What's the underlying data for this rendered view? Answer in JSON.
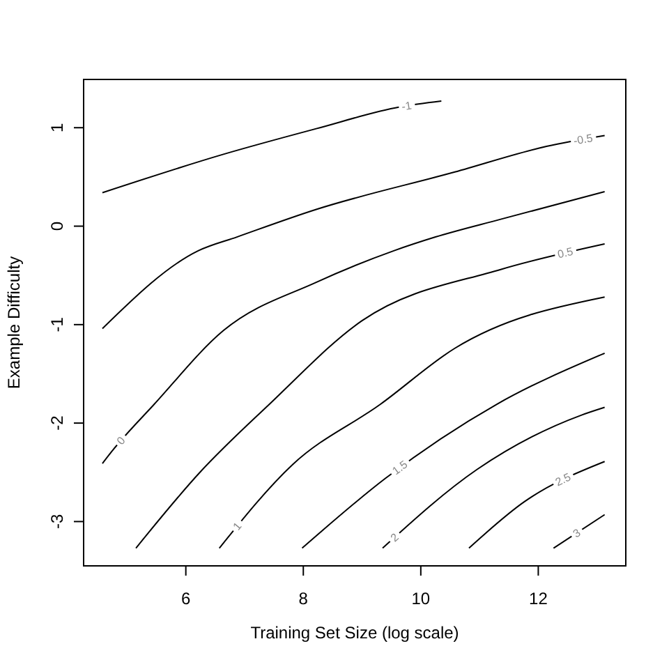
{
  "chart_data": {
    "type": "line",
    "xlabel": "Training Set Size (log scale)",
    "ylabel": "Example Difficulty",
    "xlim": [
      4.26,
      13.49
    ],
    "ylim": [
      -3.45,
      1.49
    ],
    "xticks": [
      6,
      8,
      10,
      12
    ],
    "yticks": [
      -3,
      -2,
      -1,
      0,
      1
    ],
    "grid": false,
    "legend": false,
    "marker": "none",
    "line_style": "solid",
    "series": [
      {
        "name": "-1",
        "color": "#000000",
        "x": [
          4.58,
          6.64,
          8.22,
          9.64,
          10.35
        ],
        "values": [
          0.34,
          0.73,
          0.99,
          1.21,
          1.27
        ]
      },
      {
        "name": "-0.5",
        "color": "#000000",
        "x": [
          4.58,
          6.21,
          6.87,
          8.22,
          10.58,
          12.14,
          13.13
        ],
        "values": [
          -1.04,
          -0.25,
          -0.11,
          0.17,
          0.55,
          0.81,
          0.92
        ]
      },
      {
        "name": "0",
        "color": "#000000",
        "x": [
          4.58,
          4.75,
          5.46,
          6.64,
          8.22,
          9.54,
          10.25,
          11.36,
          13.13
        ],
        "values": [
          -2.41,
          -2.28,
          -1.81,
          -1.06,
          -0.57,
          -0.25,
          -0.11,
          0.07,
          0.35
        ]
      },
      {
        "name": "0.5",
        "color": "#000000",
        "x": [
          5.15,
          6.24,
          7.42,
          9.0,
          11.36,
          13.13
        ],
        "values": [
          -3.27,
          -2.5,
          -1.81,
          -0.96,
          -0.44,
          -0.18
        ]
      },
      {
        "name": "1",
        "color": "#000000",
        "x": [
          6.57,
          7.82,
          9.31,
          10.58,
          13.13
        ],
        "values": [
          -3.27,
          -2.42,
          -1.81,
          -1.24,
          -0.72
        ]
      },
      {
        "name": "1.5",
        "color": "#000000",
        "x": [
          7.98,
          9.4,
          11.29,
          13.13
        ],
        "values": [
          -3.27,
          -2.56,
          -1.81,
          -1.29
        ]
      },
      {
        "name": "2",
        "color": "#000000",
        "x": [
          9.35,
          10.96,
          12.73,
          13.13
        ],
        "values": [
          -3.27,
          -2.47,
          -1.92,
          -1.84
        ]
      },
      {
        "name": "2.5",
        "color": "#000000",
        "x": [
          10.82,
          11.76,
          13.13
        ],
        "values": [
          -3.27,
          -2.8,
          -2.39
        ]
      },
      {
        "name": "3",
        "color": "#000000",
        "x": [
          12.26,
          13.13
        ],
        "values": [
          -3.27,
          -2.93
        ]
      }
    ]
  }
}
